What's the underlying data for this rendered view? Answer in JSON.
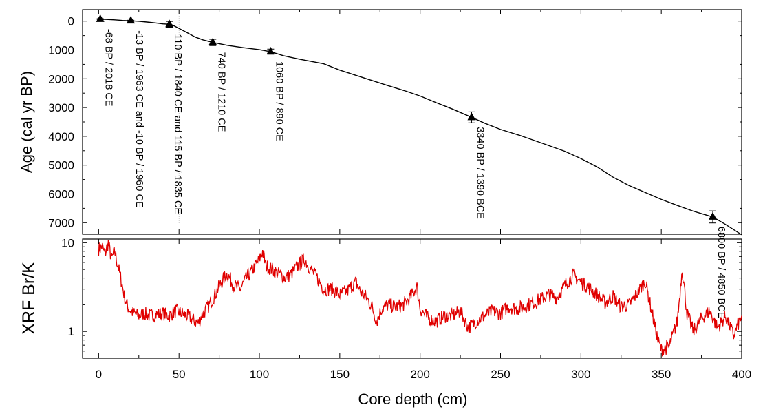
{
  "chart_data": [
    {
      "type": "line",
      "panel": "age-depth",
      "ylabel": "Age (cal yr BP)",
      "ylim": [
        7400,
        -400
      ],
      "y_inverted": true,
      "y_ticks": [
        0,
        1000,
        2000,
        3000,
        4000,
        5000,
        6000,
        7000
      ],
      "xlim": [
        -10,
        400
      ],
      "series": [
        {
          "name": "",
          "x": [
            1,
            5,
            10,
            15,
            20,
            25,
            30,
            35,
            40,
            45,
            50,
            55,
            60,
            65,
            71,
            80,
            90,
            100,
            107,
            115,
            125,
            140,
            150,
            160,
            170,
            180,
            190,
            200,
            210,
            220,
            232,
            240,
            250,
            262,
            275,
            290,
            300,
            310,
            320,
            330,
            340,
            350,
            360,
            370,
            382,
            390,
            400
          ],
          "y": [
            -68,
            -60,
            -45,
            -25,
            -13,
            5,
            30,
            60,
            95,
            110,
            250,
            400,
            550,
            650,
            740,
            840,
            920,
            990,
            1060,
            1200,
            1320,
            1480,
            1700,
            1880,
            2060,
            2240,
            2410,
            2600,
            2830,
            3050,
            3340,
            3540,
            3760,
            3970,
            4220,
            4520,
            4770,
            5060,
            5420,
            5710,
            5950,
            6190,
            6400,
            6600,
            6800,
            7060,
            7420
          ]
        }
      ],
      "dated_points": [
        {
          "x": 1,
          "y": -68,
          "err": 20
        },
        {
          "x": 20,
          "y": -13,
          "err": 20
        },
        {
          "x": 44,
          "y": 110,
          "err": 100
        },
        {
          "x": 71,
          "y": 740,
          "err": 110
        },
        {
          "x": 107,
          "y": 1060,
          "err": 90
        },
        {
          "x": 232,
          "y": 3340,
          "err": 190
        },
        {
          "x": 382,
          "y": 6800,
          "err": 210
        }
      ],
      "annotations": [
        {
          "x": 1,
          "text": "-68 BP / 2018 CE"
        },
        {
          "x": 20,
          "text": "-13 BP / 1963 CE   and -10 BP / 1960 CE"
        },
        {
          "x": 44,
          "text": "110 BP / 1840 CE and 115 BP / 1835 CE"
        },
        {
          "x": 71,
          "text": "740 BP / 1210 CE"
        },
        {
          "x": 107,
          "text": "1060 BP / 890 CE"
        },
        {
          "x": 232,
          "text": "3340 BP / 1390 BCE"
        },
        {
          "x": 382,
          "text": "6800 BP / 4850 BCE"
        }
      ]
    },
    {
      "type": "line",
      "panel": "xrf",
      "ylabel": "XRF Br/K",
      "y_scale": "log",
      "ylim": [
        0.5,
        11
      ],
      "y_ticks": [
        1,
        10
      ],
      "xlabel": "Core depth (cm)",
      "xlim": [
        -10,
        400
      ],
      "x_ticks": [
        0,
        50,
        100,
        150,
        200,
        250,
        300,
        350,
        400
      ],
      "color": "#e00000",
      "series": [
        {
          "name": "",
          "x": [
            0,
            2,
            4,
            6,
            8,
            10,
            12,
            14,
            16,
            18,
            20,
            22,
            25,
            28,
            32,
            36,
            40,
            44,
            48,
            52,
            56,
            60,
            62,
            64,
            68,
            72,
            76,
            80,
            84,
            88,
            92,
            96,
            100,
            102,
            104,
            108,
            112,
            116,
            120,
            124,
            128,
            132,
            136,
            140,
            145,
            150,
            155,
            160,
            163,
            166,
            170,
            173,
            176,
            180,
            185,
            190,
            195,
            198,
            200,
            205,
            210,
            215,
            220,
            225,
            230,
            235,
            240,
            245,
            250,
            255,
            260,
            265,
            270,
            275,
            280,
            285,
            290,
            295,
            300,
            305,
            310,
            315,
            320,
            325,
            330,
            335,
            340,
            345,
            348,
            350,
            355,
            360,
            363,
            366,
            370,
            375,
            380,
            385,
            390,
            395,
            400
          ],
          "y": [
            8.5,
            9.0,
            7.5,
            10.0,
            6.5,
            8.0,
            5.5,
            3.8,
            2.5,
            1.9,
            1.7,
            1.6,
            1.5,
            1.6,
            1.5,
            1.55,
            1.6,
            1.5,
            1.7,
            1.6,
            1.45,
            1.3,
            1.25,
            1.5,
            1.9,
            2.5,
            3.5,
            4.5,
            3.3,
            3.0,
            4.0,
            5.0,
            6.5,
            8.0,
            5.5,
            5.0,
            4.5,
            4.0,
            4.5,
            5.5,
            6.5,
            5.0,
            4.0,
            3.0,
            3.0,
            2.6,
            2.9,
            3.6,
            2.8,
            2.5,
            1.9,
            1.3,
            1.8,
            2.0,
            1.9,
            2.0,
            2.6,
            3.2,
            1.8,
            1.4,
            1.3,
            1.5,
            1.5,
            1.7,
            1.1,
            1.3,
            1.5,
            1.7,
            1.6,
            1.9,
            1.8,
            1.9,
            2.1,
            2.3,
            2.6,
            2.4,
            3.3,
            4.3,
            3.6,
            3.1,
            2.6,
            2.1,
            2.5,
            1.9,
            2.0,
            2.7,
            3.7,
            1.4,
            0.78,
            0.62,
            0.68,
            1.3,
            5.2,
            1.6,
            1.0,
            1.4,
            1.7,
            1.1,
            1.5,
            0.9,
            1.5
          ]
        }
      ]
    }
  ]
}
